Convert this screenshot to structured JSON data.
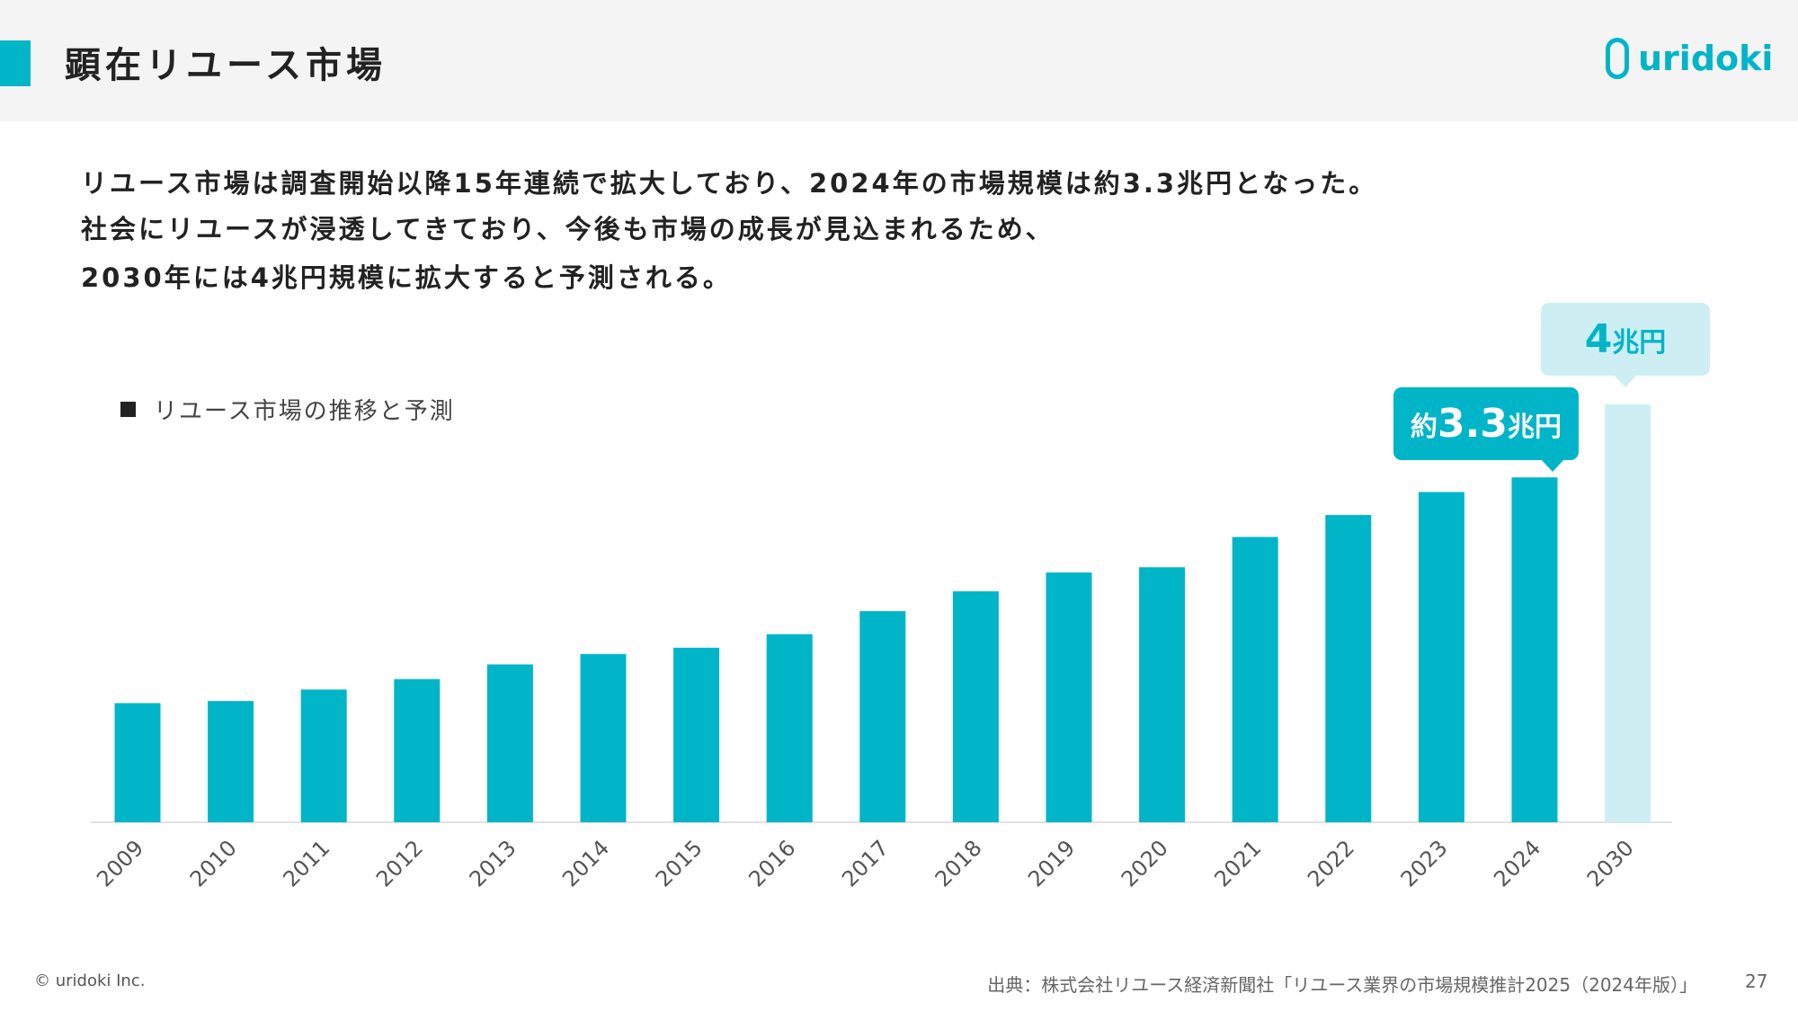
{
  "header": {
    "title": "顕在リユース市場",
    "logo_text": "uridoki",
    "accent_color": "#00b5c8"
  },
  "body_lines": [
    "リユース市場は調査開始以降15年連続で拡大しており、2024年の市場規模は約3.3兆円となった。",
    "社会にリユースが浸透してきており、今後も市場の成長が見込まれるため、",
    "2030年には4兆円規模に拡大すると予測される。"
  ],
  "chart_data": {
    "type": "bar",
    "legend": "リユース市場の推移と予測",
    "legend_position": "top-left",
    "categories": [
      "2009",
      "2010",
      "2011",
      "2012",
      "2013",
      "2014",
      "2015",
      "2016",
      "2017",
      "2018",
      "2019",
      "2020",
      "2021",
      "2022",
      "2023",
      "2024",
      "2030"
    ],
    "values": [
      1.14,
      1.16,
      1.27,
      1.37,
      1.51,
      1.61,
      1.67,
      1.8,
      2.02,
      2.21,
      2.39,
      2.44,
      2.73,
      2.94,
      3.16,
      3.3,
      4.0
    ],
    "unit": "兆円",
    "forecast": [
      "2030"
    ],
    "colors": {
      "actual": "#00b5c8",
      "forecast": "#cdeff3"
    },
    "ylim": [
      0,
      4.2
    ],
    "grid": false,
    "annotations": [
      {
        "category": "2024",
        "prefix": "約",
        "value": "3.3",
        "unit": "兆円"
      },
      {
        "category": "2030",
        "prefix": "",
        "value": "4",
        "unit": "兆円"
      }
    ]
  },
  "footer": {
    "copyright": "© uridoki Inc.",
    "source": "出典：株式会社リユース経済新聞社「リユース業界の市場規模推計2025（2024年版）」",
    "page_number": "27"
  }
}
